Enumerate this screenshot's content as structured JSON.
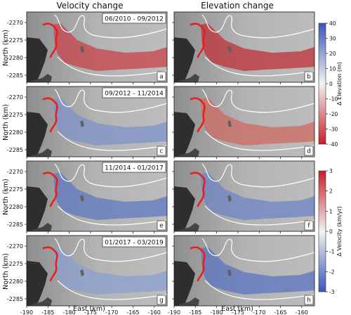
{
  "column_titles": [
    "Velocity change",
    "Elevation change"
  ],
  "periods": [
    "06/2010 - 09/2012",
    "09/2012 - 11/2014",
    "11/2014 - 01/2017",
    "01/2017 - 03/2019"
  ],
  "panel_letters": [
    "a",
    "b",
    "c",
    "d",
    "e",
    "f",
    "g",
    "h"
  ],
  "y_axis_label": "North (km)",
  "x_axis_label": "East (km)",
  "y_ticks": [
    "-2270",
    "-2275",
    "-2280",
    "-2285"
  ],
  "x_ticks": [
    "-190",
    "-185",
    "-180",
    "-175",
    "-170",
    "-165",
    "-160"
  ],
  "colorbar_elevation": {
    "label": "Δ Elevation (m)",
    "ticks": [
      "40",
      "30",
      "20",
      "10",
      "0",
      "-10",
      "-20",
      "-30",
      "-40"
    ],
    "color_top": "#3b55b5",
    "color_mid": "#f2f2f2",
    "color_bottom": "#c0202a"
  },
  "colorbar_velocity": {
    "label": "Δ Velocity (km/yr)",
    "ticks": [
      "3",
      "2",
      "1",
      "0",
      "-1",
      "-2",
      "-3"
    ],
    "color_top": "#c0202a",
    "color_mid": "#f2f2f2",
    "color_bottom": "#3b55b5"
  },
  "panel_tints": {
    "a": "#c8434a",
    "b": "#c0303a",
    "c": "#7d93c9",
    "d": "#cf6a62",
    "e": "#5f78c1",
    "f": "#6e86c6",
    "g": "#8aa0d0",
    "h": "#5b74c0"
  },
  "chart_data": {
    "type": "heatmap",
    "panels": [
      {
        "letter": "a",
        "quantity": "Velocity change",
        "period": "06/2010 - 09/2012"
      },
      {
        "letter": "b",
        "quantity": "Elevation change",
        "period": "06/2010 - 09/2012"
      },
      {
        "letter": "c",
        "quantity": "Velocity change",
        "period": "09/2012 - 11/2014"
      },
      {
        "letter": "d",
        "quantity": "Elevation change",
        "period": "09/2012 - 11/2014"
      },
      {
        "letter": "e",
        "quantity": "Velocity change",
        "period": "11/2014 - 01/2017"
      },
      {
        "letter": "f",
        "quantity": "Elevation change",
        "period": "11/2014 - 01/2017"
      },
      {
        "letter": "g",
        "quantity": "Velocity change",
        "period": "01/2017 - 03/2019"
      },
      {
        "letter": "h",
        "quantity": "Elevation change",
        "period": "01/2017 - 03/2019"
      }
    ],
    "xlim": [
      -190,
      -157
    ],
    "ylim": [
      -2287,
      -2267
    ],
    "elevation_colorbar_range_m": [
      -40,
      40
    ],
    "velocity_colorbar_range_km_per_yr": [
      -3,
      3
    ]
  }
}
